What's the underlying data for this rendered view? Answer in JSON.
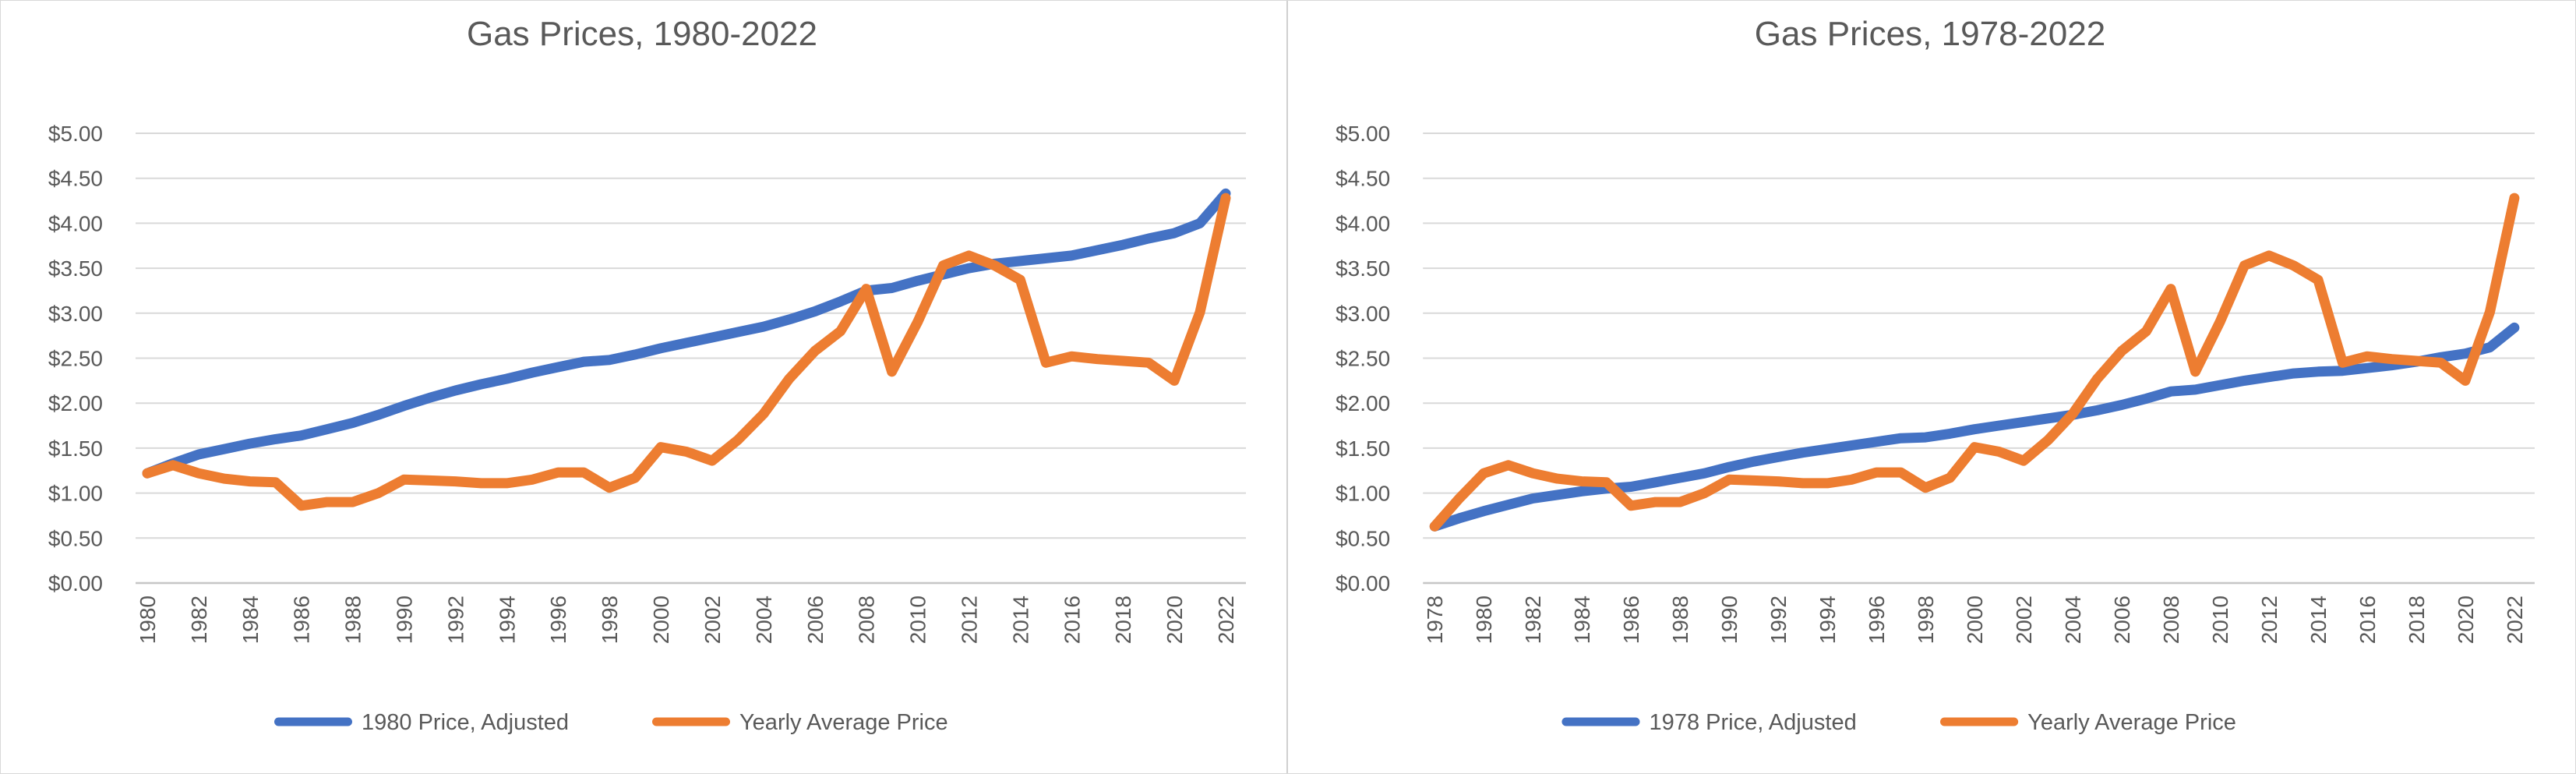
{
  "page": {
    "background_color": "#FFFFFF",
    "panel_border_color": "#D9D9D9",
    "gridline_color": "#D9D9D9",
    "axis_line_color": "#C6C6C6",
    "text_color": "#595959"
  },
  "chart_data": [
    {
      "type": "line",
      "title": "Gas Prices, 1980-2022",
      "xlabel": "",
      "ylabel": "",
      "ylim": [
        0,
        5
      ],
      "y_step": 0.5,
      "grid": true,
      "legend_position": "bottom",
      "y_tick_labels": [
        "$0.00",
        "$0.50",
        "$1.00",
        "$1.50",
        "$2.00",
        "$2.50",
        "$3.00",
        "$3.50",
        "$4.00",
        "$4.50",
        "$5.00"
      ],
      "x_tick_labels": [
        "1980",
        "1982",
        "1984",
        "1986",
        "1988",
        "1990",
        "1992",
        "1994",
        "1996",
        "1998",
        "2000",
        "2002",
        "2004",
        "2006",
        "2008",
        "2010",
        "2012",
        "2014",
        "2016",
        "2018",
        "2020",
        "2022"
      ],
      "x": [
        1980,
        1981,
        1982,
        1983,
        1984,
        1985,
        1986,
        1987,
        1988,
        1989,
        1990,
        1991,
        1992,
        1993,
        1994,
        1995,
        1996,
        1997,
        1998,
        1999,
        2000,
        2001,
        2002,
        2003,
        2004,
        2005,
        2006,
        2007,
        2008,
        2009,
        2010,
        2011,
        2012,
        2013,
        2014,
        2015,
        2016,
        2017,
        2018,
        2019,
        2020,
        2021,
        2022
      ],
      "series": [
        {
          "name": "1980 Price, Adjusted",
          "color": "#4472C4",
          "values": [
            1.22,
            1.33,
            1.43,
            1.49,
            1.55,
            1.6,
            1.64,
            1.71,
            1.78,
            1.87,
            1.97,
            2.06,
            2.14,
            2.21,
            2.27,
            2.34,
            2.4,
            2.46,
            2.48,
            2.54,
            2.61,
            2.67,
            2.73,
            2.79,
            2.85,
            2.93,
            3.02,
            3.13,
            3.25,
            3.28,
            3.36,
            3.43,
            3.5,
            3.55,
            3.58,
            3.61,
            3.64,
            3.7,
            3.76,
            3.83,
            3.89,
            4.0,
            4.33
          ]
        },
        {
          "name": "Yearly Average Price",
          "color": "#ED7D31",
          "values": [
            1.22,
            1.31,
            1.22,
            1.16,
            1.13,
            1.12,
            0.86,
            0.9,
            0.9,
            1.0,
            1.15,
            1.14,
            1.13,
            1.11,
            1.11,
            1.15,
            1.23,
            1.23,
            1.06,
            1.17,
            1.51,
            1.46,
            1.36,
            1.59,
            1.88,
            2.27,
            2.58,
            2.8,
            3.27,
            2.35,
            2.9,
            3.53,
            3.64,
            3.53,
            3.37,
            2.45,
            2.52,
            2.49,
            2.47,
            2.45,
            2.25,
            3.01,
            4.28
          ]
        }
      ]
    },
    {
      "type": "line",
      "title": "Gas Prices, 1978-2022",
      "xlabel": "",
      "ylabel": "",
      "ylim": [
        0,
        5
      ],
      "y_step": 0.5,
      "grid": true,
      "legend_position": "bottom",
      "y_tick_labels": [
        "$0.00",
        "$0.50",
        "$1.00",
        "$1.50",
        "$2.00",
        "$2.50",
        "$3.00",
        "$3.50",
        "$4.00",
        "$4.50",
        "$5.00"
      ],
      "x_tick_labels": [
        "1978",
        "1980",
        "1982",
        "1984",
        "1986",
        "1988",
        "1990",
        "1992",
        "1994",
        "1996",
        "1998",
        "2000",
        "2002",
        "2004",
        "2006",
        "2008",
        "2010",
        "2012",
        "2014",
        "2016",
        "2018",
        "2020",
        "2022"
      ],
      "x": [
        1978,
        1979,
        1980,
        1981,
        1982,
        1983,
        1984,
        1985,
        1986,
        1987,
        1988,
        1989,
        1990,
        1991,
        1992,
        1993,
        1994,
        1995,
        1996,
        1997,
        1998,
        1999,
        2000,
        2001,
        2002,
        2003,
        2004,
        2005,
        2006,
        2007,
        2008,
        2009,
        2010,
        2011,
        2012,
        2013,
        2014,
        2015,
        2016,
        2017,
        2018,
        2019,
        2020,
        2021,
        2022
      ],
      "series": [
        {
          "name": "1978 Price, Adjusted",
          "color": "#4472C4",
          "values": [
            0.63,
            0.72,
            0.8,
            0.87,
            0.94,
            0.98,
            1.02,
            1.05,
            1.07,
            1.12,
            1.17,
            1.22,
            1.29,
            1.35,
            1.4,
            1.45,
            1.49,
            1.53,
            1.57,
            1.61,
            1.62,
            1.66,
            1.71,
            1.75,
            1.79,
            1.83,
            1.87,
            1.92,
            1.98,
            2.05,
            2.13,
            2.15,
            2.2,
            2.25,
            2.29,
            2.33,
            2.35,
            2.36,
            2.39,
            2.42,
            2.46,
            2.51,
            2.55,
            2.62,
            2.84
          ]
        },
        {
          "name": "Yearly Average Price",
          "color": "#ED7D31",
          "values": [
            0.63,
            0.94,
            1.22,
            1.31,
            1.22,
            1.16,
            1.13,
            1.12,
            0.86,
            0.9,
            0.9,
            1.0,
            1.15,
            1.14,
            1.13,
            1.11,
            1.11,
            1.15,
            1.23,
            1.23,
            1.06,
            1.17,
            1.51,
            1.46,
            1.36,
            1.59,
            1.88,
            2.27,
            2.58,
            2.8,
            3.27,
            2.35,
            2.9,
            3.53,
            3.64,
            3.53,
            3.37,
            2.45,
            2.52,
            2.49,
            2.47,
            2.45,
            2.25,
            3.01,
            4.28
          ]
        }
      ]
    }
  ]
}
